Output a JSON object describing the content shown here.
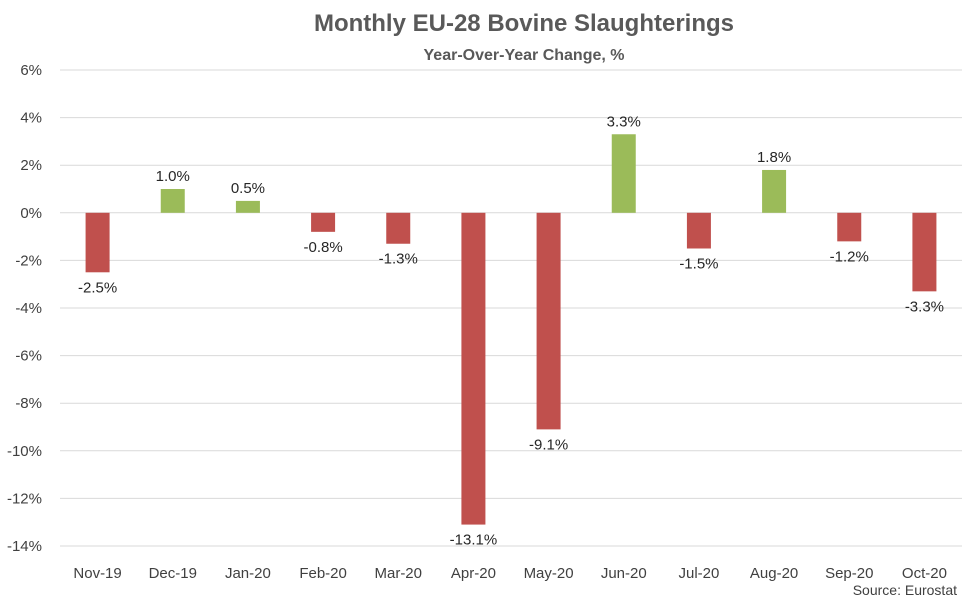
{
  "chart_data": {
    "type": "bar",
    "title": "Monthly EU-28 Bovine Slaughterings",
    "subtitle": "Year-Over-Year Change, %",
    "categories": [
      "Nov-19",
      "Dec-19",
      "Jan-20",
      "Feb-20",
      "Mar-20",
      "Apr-20",
      "May-20",
      "Jun-20",
      "Jul-20",
      "Aug-20",
      "Sep-20",
      "Oct-20"
    ],
    "values": [
      -2.5,
      1.0,
      0.5,
      -0.8,
      -1.3,
      -13.1,
      -9.1,
      3.3,
      -1.5,
      1.8,
      -1.2,
      -3.3
    ],
    "data_labels": [
      "-2.5%",
      "1.0%",
      "0.5%",
      "-0.8%",
      "-1.3%",
      "-13.1%",
      "-9.1%",
      "3.3%",
      "-1.5%",
      "1.8%",
      "-1.2%",
      "-3.3%"
    ],
    "yticks": [
      6,
      4,
      2,
      0,
      -2,
      -4,
      -6,
      -8,
      -10,
      -12,
      -14
    ],
    "ytick_labels": [
      "6%",
      "4%",
      "2%",
      "0%",
      "-2%",
      "-4%",
      "-6%",
      "-8%",
      "-10%",
      "-12%",
      "-14%"
    ],
    "ylim": [
      -14,
      6
    ],
    "xlabel": "",
    "ylabel": "",
    "grid": true,
    "colors": {
      "positive": "#9BBB59",
      "negative": "#C0504D",
      "grid": "#D9D9D9"
    },
    "source": "Source: Eurostat"
  }
}
